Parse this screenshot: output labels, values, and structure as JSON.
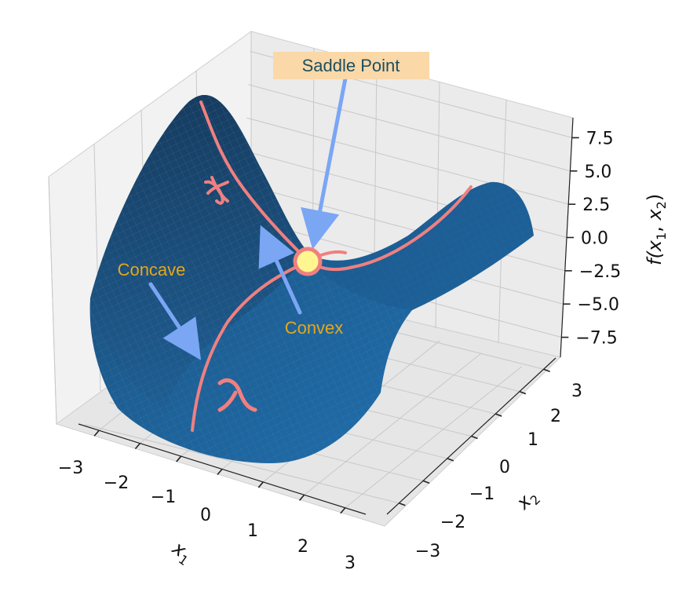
{
  "chart_data": {
    "type": "surface",
    "function": "f(x1, x2) = x1^2 - x2^2",
    "x1_ticks": [
      "−3",
      "−2",
      "−1",
      "0",
      "1",
      "2",
      "3"
    ],
    "x2_ticks": [
      "−3",
      "−2",
      "−1",
      "0",
      "1",
      "2",
      "3"
    ],
    "z_ticks": [
      "7.5",
      "5.0",
      "2.5",
      "0.0",
      "−2.5",
      "−5.0",
      "−7.5"
    ],
    "x1_range": [
      -3,
      3
    ],
    "x2_range": [
      -3,
      3
    ],
    "z_range": [
      -9,
      9
    ],
    "labels": {
      "x1_base": "x",
      "x1_sub": "1",
      "x2_base": "x",
      "x2_sub": "2",
      "z_prefix": "f(",
      "z_var1": "x",
      "z_sub1": "1",
      "z_sep": ", ",
      "z_var2": "x",
      "z_sub2": "2",
      "z_suffix": ")"
    },
    "annotations": {
      "saddle": "Saddle Point",
      "concave": "Concave",
      "convex": "Convex"
    },
    "saddle_point": {
      "x1": 0,
      "x2": 0,
      "f": 0
    },
    "grid": true,
    "colors": {
      "surface": "#1f6fae",
      "surface_dark": "#16456d",
      "curve": "#f08080",
      "arrow": "#7aa6f4",
      "annotation_text": "#e3a81c",
      "saddle_box": "#fad8a8",
      "saddle_text": "#1d4f5f",
      "saddle_marker": "#fff68f"
    }
  }
}
